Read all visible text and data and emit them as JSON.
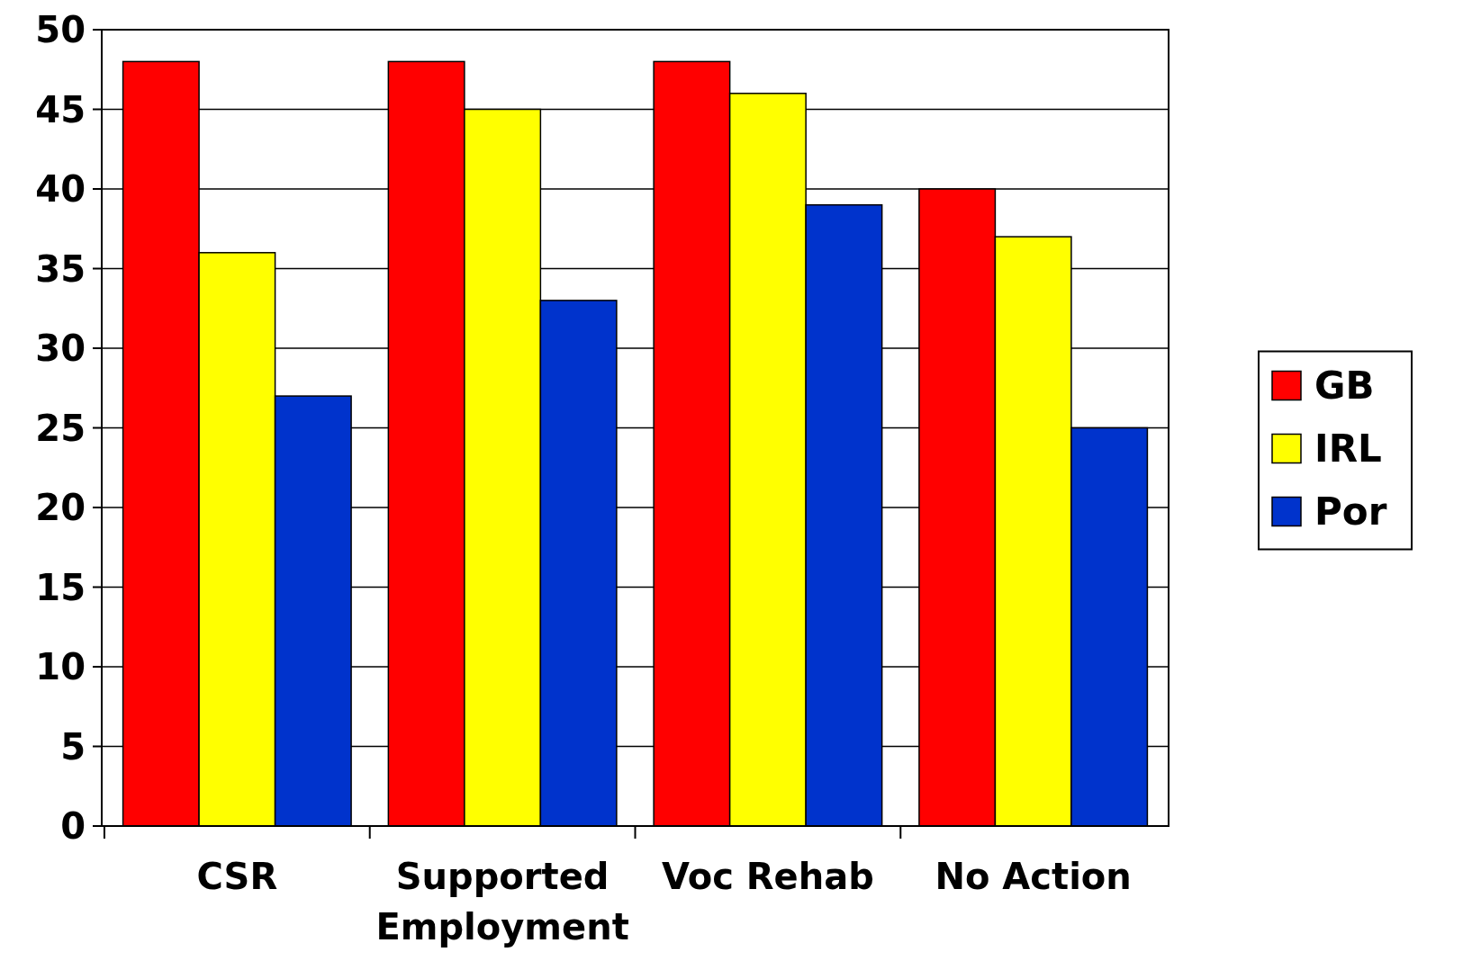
{
  "chart_data": {
    "type": "bar",
    "categories": [
      "CSR",
      "Supported Employment",
      "Voc Rehab",
      "No Action"
    ],
    "series": [
      {
        "name": "GB",
        "color": "#ff0000",
        "values": [
          48,
          48,
          48,
          40
        ]
      },
      {
        "name": "IRL",
        "color": "#ffff00",
        "values": [
          36,
          45,
          46,
          37
        ]
      },
      {
        "name": "Por",
        "color": "#0033cc",
        "values": [
          27,
          33,
          39,
          25
        ]
      }
    ],
    "ylim": [
      0,
      50
    ],
    "yticks": [
      0,
      5,
      10,
      15,
      20,
      25,
      30,
      35,
      40,
      45,
      50
    ],
    "grid": "y",
    "legend": "right"
  }
}
